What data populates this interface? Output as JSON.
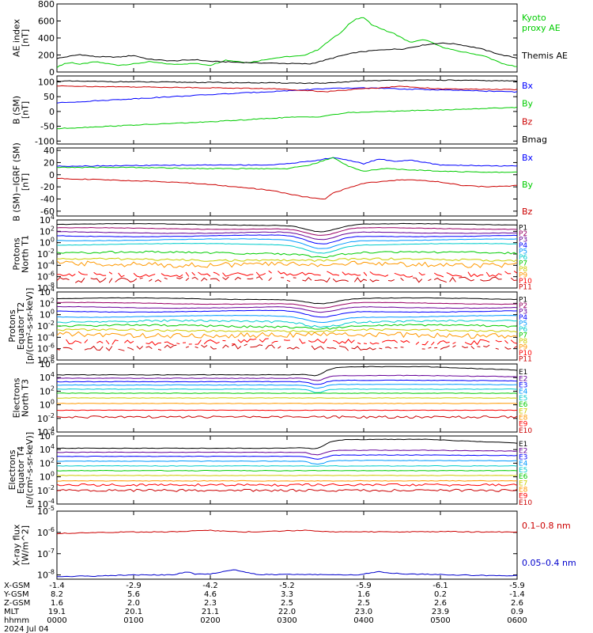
{
  "chart_data": [
    {
      "id": "ae",
      "type": "line",
      "ylabel": [
        "AE index",
        "[nT]"
      ],
      "ylim": [
        0,
        800
      ],
      "yticks": [
        {
          "v": 800,
          "t": "800"
        },
        {
          "v": 600,
          "t": "600"
        },
        {
          "v": 400,
          "t": "400"
        },
        {
          "v": 200,
          "t": "200"
        },
        {
          "v": 0,
          "t": "0"
        }
      ],
      "series": [
        {
          "name": "Kyoto proxy AE",
          "color": "#00cc00",
          "x": [
            0,
            0.1,
            0.2,
            0.3,
            0.5,
            0.8,
            1.0,
            1.2,
            1.5,
            1.8,
            2.0,
            2.2,
            2.5,
            2.8,
            3.0,
            3.2,
            3.4,
            3.5,
            3.6,
            3.7,
            3.8,
            3.9,
            4.0,
            4.1,
            4.2,
            4.3,
            4.4,
            4.5,
            4.6,
            4.8,
            5.0,
            5.2,
            5.4,
            5.6,
            5.8,
            6.0
          ],
          "y": [
            55,
            100,
            110,
            90,
            120,
            80,
            95,
            120,
            90,
            100,
            80,
            140,
            110,
            160,
            180,
            190,
            260,
            330,
            400,
            460,
            560,
            620,
            640,
            560,
            520,
            480,
            450,
            400,
            350,
            380,
            300,
            250,
            220,
            180,
            100,
            60
          ]
        },
        {
          "name": "Themis AE",
          "color": "#000000",
          "x": [
            0,
            0.3,
            0.5,
            0.8,
            1.0,
            1.2,
            1.5,
            1.8,
            2.0,
            2.5,
            3.0,
            3.3,
            3.5,
            3.7,
            3.9,
            4.1,
            4.3,
            4.5,
            4.8,
            5.0,
            5.2,
            5.5,
            5.8,
            6.0
          ],
          "y": [
            160,
            205,
            180,
            175,
            195,
            150,
            130,
            145,
            125,
            110,
            100,
            95,
            140,
            190,
            230,
            250,
            265,
            270,
            320,
            340,
            330,
            280,
            200,
            165
          ]
        }
      ],
      "legend": [
        {
          "text": "Kyoto",
          "color": "#00cc00"
        },
        {
          "text": "proxy AE",
          "color": "#00cc00"
        },
        {
          "text": "Themis AE",
          "color": "#000000"
        }
      ]
    },
    {
      "id": "b",
      "type": "line",
      "ylabel": [
        "B (SM)",
        "[nT]"
      ],
      "ylim": [
        -110,
        120
      ],
      "yticks": [
        {
          "v": 100,
          "t": "100"
        },
        {
          "v": 50,
          "t": "50"
        },
        {
          "v": 0,
          "t": "0"
        },
        {
          "v": -50,
          "t": "-50"
        },
        {
          "v": -100,
          "t": "-100"
        }
      ],
      "series": [
        {
          "name": "Bmag",
          "color": "#000000",
          "x": [
            0,
            1,
            2,
            3,
            3.5,
            4,
            5,
            6
          ],
          "y": [
            103,
            100,
            98,
            96,
            95,
            104,
            106,
            103
          ]
        },
        {
          "name": "By",
          "color": "#00cc00",
          "x": [
            0,
            1,
            2,
            3,
            3.4,
            3.8,
            4.5,
            5,
            6
          ],
          "y": [
            -58,
            -46,
            -35,
            -20,
            -18,
            -4,
            2,
            5,
            14
          ]
        },
        {
          "name": "Bx",
          "color": "#0000ff",
          "x": [
            0,
            1,
            2,
            3,
            3.5,
            4,
            4.5,
            5,
            6
          ],
          "y": [
            29,
            43,
            57,
            70,
            77,
            80,
            76,
            73,
            66
          ]
        },
        {
          "name": "Bz",
          "color": "#cc0000",
          "x": [
            0,
            1,
            2,
            2.8,
            3.2,
            3.5,
            4,
            4.5,
            5,
            6
          ],
          "y": [
            86,
            83,
            80,
            77,
            72,
            67,
            77,
            85,
            76,
            74
          ]
        }
      ],
      "legend": [
        {
          "text": "Bx",
          "color": "#0000ff"
        },
        {
          "text": "By",
          "color": "#00cc00"
        },
        {
          "text": "Bz",
          "color": "#cc0000"
        },
        {
          "text": "Bmag",
          "color": "#000000"
        }
      ]
    },
    {
      "id": "digrf",
      "type": "line",
      "ylabel": [
        "B (SM)−IGRF (SM)",
        "[nT]"
      ],
      "ylim": [
        -68,
        44
      ],
      "yticks": [
        {
          "v": 40,
          "t": "40"
        },
        {
          "v": 20,
          "t": "20"
        },
        {
          "v": 0,
          "t": "0"
        },
        {
          "v": -20,
          "t": "-20"
        },
        {
          "v": -40,
          "t": "-40"
        },
        {
          "v": -60,
          "t": "-60"
        }
      ],
      "series": [
        {
          "name": "Bx",
          "color": "#0000ff",
          "x": [
            0,
            1,
            2,
            2.8,
            3.3,
            3.6,
            3.8,
            4.0,
            4.2,
            4.4,
            4.6,
            4.8,
            5,
            5.5,
            6
          ],
          "y": [
            14,
            15,
            16,
            16,
            22,
            28,
            24,
            18,
            26,
            22,
            24,
            20,
            16,
            15,
            14
          ]
        },
        {
          "name": "By",
          "color": "#00cc00",
          "x": [
            0,
            1,
            2,
            3,
            3.3,
            3.6,
            3.8,
            4.0,
            4.3,
            4.6,
            5,
            5.5,
            6
          ],
          "y": [
            12,
            12,
            10,
            10,
            16,
            28,
            14,
            6,
            10,
            8,
            6,
            4,
            4
          ]
        },
        {
          "name": "Bz",
          "color": "#cc0000",
          "x": [
            0,
            0.5,
            1,
            1.5,
            2,
            2.5,
            2.8,
            3.2,
            3.5,
            3.6,
            3.8,
            4.0,
            4.2,
            4.5,
            4.8,
            5,
            5.3,
            5.6,
            6
          ],
          "y": [
            -6,
            -8,
            -10,
            -12,
            -16,
            -22,
            -26,
            -36,
            -40,
            -30,
            -22,
            -14,
            -12,
            -8,
            -10,
            -12,
            -18,
            -20,
            -18
          ]
        }
      ],
      "legend": [
        {
          "text": "Bx",
          "color": "#0000ff"
        },
        {
          "text": "By",
          "color": "#00cc00"
        },
        {
          "text": "Bz",
          "color": "#cc0000"
        }
      ]
    },
    {
      "id": "pn",
      "type": "line",
      "log": true,
      "ylabel": [
        "Protons",
        "North T1"
      ],
      "ylim": [
        -8,
        4
      ],
      "yticks": [
        {
          "v": 4,
          "t": "10",
          "e": "4"
        },
        {
          "v": 2,
          "t": "10",
          "e": "2"
        },
        {
          "v": 0,
          "t": "10",
          "e": "0"
        },
        {
          "v": -2,
          "t": "10",
          "e": "-2"
        },
        {
          "v": -4,
          "t": "10",
          "e": "-4"
        },
        {
          "v": -6,
          "t": "10",
          "e": "-6"
        },
        {
          "v": -8,
          "t": "10",
          "e": "-8"
        }
      ],
      "series": [
        {
          "name": "P1",
          "color": "#000000",
          "base": 3.2,
          "dip": 1.2
        },
        {
          "name": "P2",
          "color": "#990066",
          "base": 2.5,
          "dip": 1.3
        },
        {
          "name": "P3",
          "color": "#660099",
          "base": 1.8,
          "dip": 1.4
        },
        {
          "name": "P4",
          "color": "#0000ff",
          "base": 1.2,
          "dip": 1.5
        },
        {
          "name": "P5",
          "color": "#0099ff",
          "base": 0.5,
          "dip": 1.5
        },
        {
          "name": "P6",
          "color": "#00cccc",
          "base": -0.3,
          "dip": 1.4
        },
        {
          "name": "P7",
          "color": "#00cc00",
          "base": -1.8,
          "dip": 0.6
        },
        {
          "name": "P8",
          "color": "#cccc00",
          "base": -3.0,
          "dip": 0.2
        },
        {
          "name": "P9",
          "color": "#ff9900",
          "base": -3.8,
          "dip": 0.2
        },
        {
          "name": "P10",
          "color": "#ff0000",
          "base": -5.5,
          "dip": 0
        },
        {
          "name": "P11",
          "color": "#cc0000",
          "base": -6.5,
          "dip": 0
        }
      ]
    },
    {
      "id": "pe",
      "type": "line",
      "log": true,
      "ylabel": [
        "Protons",
        "Equator T2",
        "[p/(cm²-s-sr-keV)]"
      ],
      "ylim": [
        -8,
        4
      ],
      "yticks": [
        {
          "v": 4,
          "t": "10",
          "e": "4"
        },
        {
          "v": 2,
          "t": "10",
          "e": "2"
        },
        {
          "v": 0,
          "t": "10",
          "e": "0"
        },
        {
          "v": -2,
          "t": "10",
          "e": "-2"
        },
        {
          "v": -4,
          "t": "10",
          "e": "-4"
        },
        {
          "v": -6,
          "t": "10",
          "e": "-6"
        },
        {
          "v": -8,
          "t": "10",
          "e": "-8"
        }
      ],
      "series": [
        {
          "name": "P1",
          "color": "#000000",
          "base": 2.8,
          "dip": 0.8
        },
        {
          "name": "P2",
          "color": "#990066",
          "base": 2.0,
          "dip": 0.9
        },
        {
          "name": "P3",
          "color": "#660099",
          "base": 1.3,
          "dip": 1.0
        },
        {
          "name": "P4",
          "color": "#0000ff",
          "base": 0.6,
          "dip": 1.1
        },
        {
          "name": "P5",
          "color": "#0099ff",
          "base": -0.3,
          "dip": 1.0
        },
        {
          "name": "P6",
          "color": "#00cccc",
          "base": -1.2,
          "dip": 0.8
        },
        {
          "name": "P7",
          "color": "#00cc00",
          "base": -2.0,
          "dip": 0.4
        },
        {
          "name": "P8",
          "color": "#cccc00",
          "base": -2.8,
          "dip": 0.2
        },
        {
          "name": "P9",
          "color": "#ff9900",
          "base": -3.6,
          "dip": 0.1
        },
        {
          "name": "P10",
          "color": "#ff0000",
          "base": -4.8,
          "dip": 0
        },
        {
          "name": "P11",
          "color": "#cc0000",
          "base": -5.8,
          "dip": 0
        }
      ]
    },
    {
      "id": "en",
      "type": "line",
      "log": true,
      "ylabel": [
        "Electrons",
        "North T3"
      ],
      "ylim": [
        -4,
        6
      ],
      "yticks": [
        {
          "v": 6,
          "t": "10",
          "e": "6"
        },
        {
          "v": 4,
          "t": "10",
          "e": "4"
        },
        {
          "v": 2,
          "t": "10",
          "e": "2"
        },
        {
          "v": 0,
          "t": "10",
          "e": "0"
        },
        {
          "v": -2,
          "t": "10",
          "e": "-2"
        },
        {
          "v": -4,
          "t": "10",
          "e": "-4"
        }
      ],
      "series": [
        {
          "name": "E1",
          "color": "#000000",
          "base": 4.4,
          "bump": 1.2
        },
        {
          "name": "E2",
          "color": "#660099",
          "base": 3.9,
          "bump": 0.4
        },
        {
          "name": "E3",
          "color": "#0000ff",
          "base": 3.4,
          "bump": 0.2
        },
        {
          "name": "E4",
          "color": "#0099ff",
          "base": 2.9,
          "bump": 0.1
        },
        {
          "name": "E5",
          "color": "#00cccc",
          "base": 2.3,
          "bump": 0
        },
        {
          "name": "E6",
          "color": "#00cc00",
          "base": 1.7,
          "bump": 0
        },
        {
          "name": "E7",
          "color": "#cccc00",
          "base": 1.0,
          "bump": 0
        },
        {
          "name": "E8",
          "color": "#ff9900",
          "base": 0.2,
          "bump": 0
        },
        {
          "name": "E9",
          "color": "#ff0000",
          "base": -0.8,
          "bump": 0
        },
        {
          "name": "E10",
          "color": "#cc0000",
          "base": -1.8,
          "bump": 0
        }
      ]
    },
    {
      "id": "ee",
      "type": "line",
      "log": true,
      "ylabel": [
        "Electrons",
        "Equator T4",
        "[e/(cm²-s-sr-keV)]"
      ],
      "ylim": [
        -4,
        6
      ],
      "yticks": [
        {
          "v": 6,
          "t": "10",
          "e": "6"
        },
        {
          "v": 4,
          "t": "10",
          "e": "4"
        },
        {
          "v": 2,
          "t": "10",
          "e": "2"
        },
        {
          "v": 0,
          "t": "10",
          "e": "0"
        },
        {
          "v": -2,
          "t": "10",
          "e": "-2"
        },
        {
          "v": -4,
          "t": "10",
          "e": "-4"
        }
      ],
      "series": [
        {
          "name": "E1",
          "color": "#000000",
          "base": 4.2,
          "bump": 1.3
        },
        {
          "name": "E2",
          "color": "#660099",
          "base": 3.6,
          "bump": 0.3
        },
        {
          "name": "E3",
          "color": "#0000ff",
          "base": 3.0,
          "bump": 0.2
        },
        {
          "name": "E4",
          "color": "#0099ff",
          "base": 2.3,
          "bump": 0.1
        },
        {
          "name": "E5",
          "color": "#00cccc",
          "base": 1.6,
          "bump": 0
        },
        {
          "name": "E6",
          "color": "#00cc00",
          "base": 0.9,
          "bump": 0
        },
        {
          "name": "E7",
          "color": "#cccc00",
          "base": 0.2,
          "bump": 0
        },
        {
          "name": "E8",
          "color": "#ff9900",
          "base": -0.6,
          "bump": 0
        },
        {
          "name": "E9",
          "color": "#ff0000",
          "base": -1.2,
          "bump": 0
        },
        {
          "name": "E10",
          "color": "#cc0000",
          "base": -2.0,
          "bump": 0
        }
      ]
    },
    {
      "id": "xray",
      "type": "line",
      "log": true,
      "ylabel": [
        "X-ray flux",
        "[W/m^2]"
      ],
      "ylim": [
        -8.2,
        -5
      ],
      "yticks": [
        {
          "v": -5,
          "t": "10",
          "e": "-5"
        },
        {
          "v": -6,
          "t": "10",
          "e": "-6"
        },
        {
          "v": -7,
          "t": "10",
          "e": "-7"
        },
        {
          "v": -8,
          "t": "10",
          "e": "-8"
        }
      ],
      "series": [
        {
          "name": "0.1-0.8 nm",
          "color": "#cc0000",
          "x": [
            0,
            0.5,
            1,
            1.5,
            2,
            2.4,
            2.8,
            3.2,
            3.6,
            4,
            4.5,
            5,
            5.5,
            6
          ],
          "y": [
            -6.05,
            -6.0,
            -5.98,
            -5.97,
            -5.9,
            -5.98,
            -5.95,
            -5.9,
            -5.97,
            -5.97,
            -5.98,
            -5.96,
            -5.98,
            -5.98
          ]
        },
        {
          "name": "0.05-0.4 nm",
          "color": "#0000cc",
          "x": [
            0,
            0.5,
            1,
            1.5,
            1.7,
            1.8,
            2,
            2.3,
            2.6,
            3,
            3.5,
            3.9,
            4.2,
            4.5,
            5,
            5.5,
            6
          ],
          "y": [
            -8.08,
            -8.05,
            -8.0,
            -8.0,
            -7.85,
            -7.95,
            -7.95,
            -7.75,
            -7.98,
            -7.98,
            -7.98,
            -8.0,
            -7.85,
            -7.95,
            -7.98,
            -8.02,
            -8.04
          ]
        }
      ],
      "legend": [
        {
          "text": "0.1–0.8 nm",
          "color": "#cc0000"
        },
        {
          "text": "0.05–0.4 nm",
          "color": "#0000cc"
        }
      ]
    }
  ],
  "x_axis": {
    "row_labels": [
      "X-GSM",
      "Y-GSM",
      "Z-GSM",
      "MLT",
      "hhmm"
    ],
    "date": "2024 Jul 04",
    "columns": [
      [
        "-1.4",
        "8.2",
        "1.6",
        "19.1",
        "0000"
      ],
      [
        "-2.9",
        "5.6",
        "2.0",
        "20.1",
        "0100"
      ],
      [
        "-4.2",
        "4.6",
        "2.3",
        "21.1",
        "0200"
      ],
      [
        "-5.2",
        "3.3",
        "2.5",
        "22.0",
        "0300"
      ],
      [
        "-5.9",
        "1.6",
        "2.5",
        "23.0",
        "0400"
      ],
      [
        "-6.1",
        "0.2",
        "2.6",
        "23.9",
        "0500"
      ],
      [
        "-5.9",
        "-1.4",
        "2.6",
        "0.9",
        "0600"
      ]
    ]
  },
  "colors": {
    "frame": "#000000",
    "background": "#ffffff"
  }
}
